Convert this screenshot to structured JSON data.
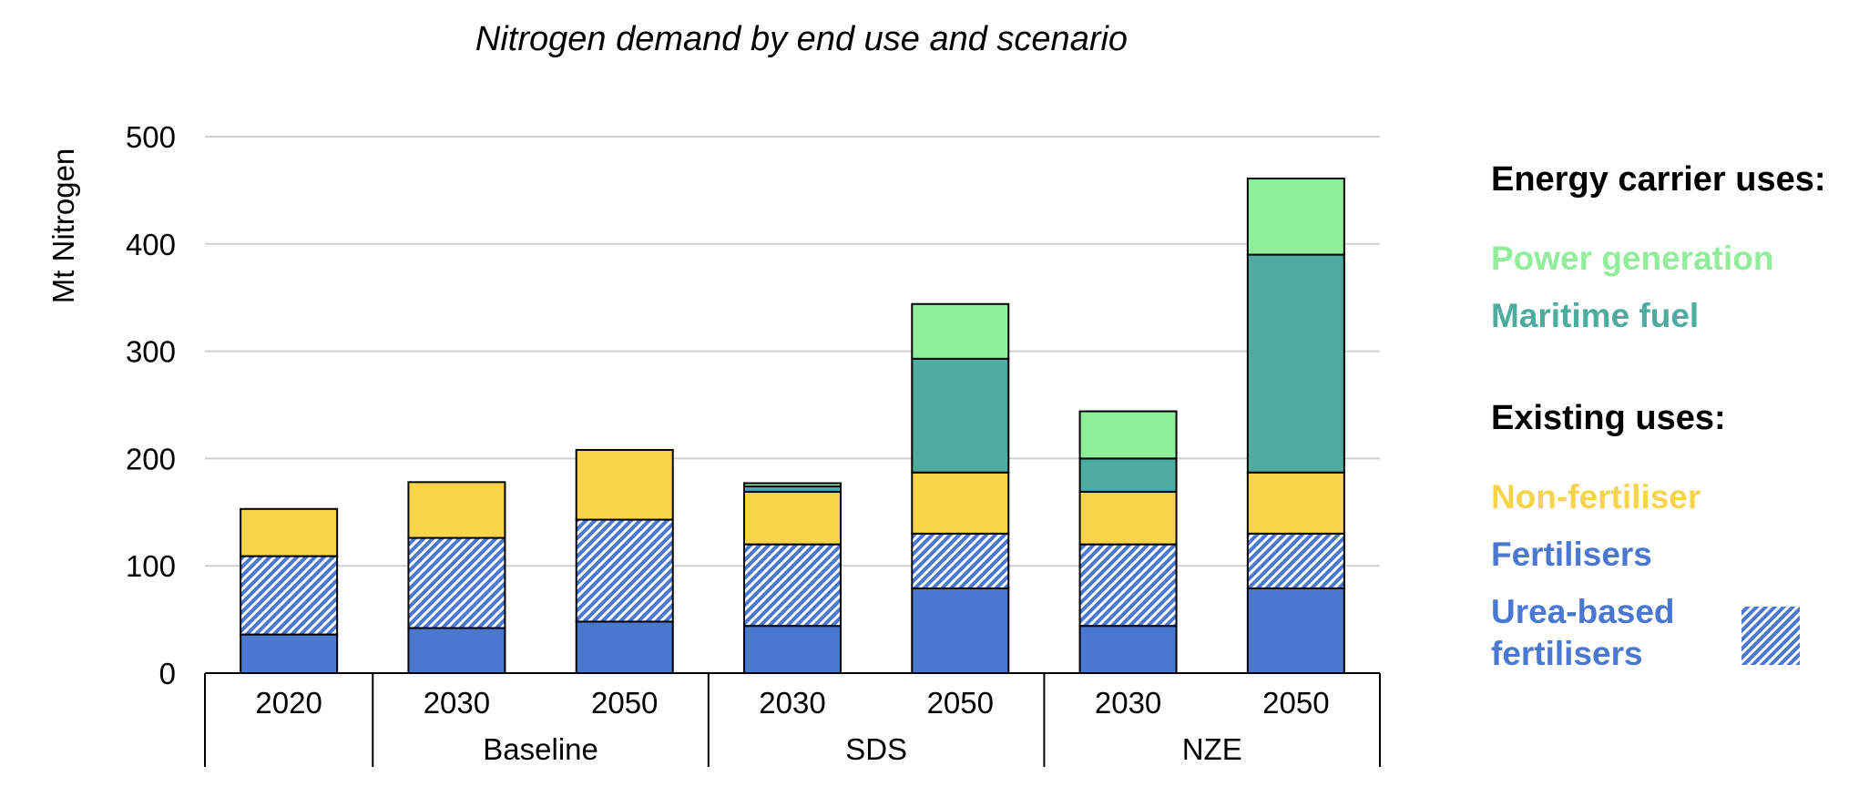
{
  "chart_data": {
    "type": "bar",
    "stacked": true,
    "title": "Nitrogen demand by end use and scenario",
    "xlabel": "",
    "ylabel": "Mt Nitrogen",
    "ylim": [
      0,
      500
    ],
    "yticks": [
      0,
      100,
      200,
      300,
      400,
      500
    ],
    "grid": true,
    "legend_position": "right",
    "categories": [
      "2020",
      "2030",
      "2050",
      "2030",
      "2050",
      "2030",
      "2050"
    ],
    "groups": [
      {
        "label": "",
        "categories": [
          "2020"
        ]
      },
      {
        "label": "Baseline",
        "categories": [
          "2030",
          "2050"
        ]
      },
      {
        "label": "SDS",
        "categories": [
          "2030",
          "2050"
        ]
      },
      {
        "label": "NZE",
        "categories": [
          "2030",
          "2050"
        ]
      }
    ],
    "series": [
      {
        "name": "Fertilisers",
        "color": "#4a78d0",
        "values": [
          36,
          42,
          48,
          44,
          79,
          44,
          79
        ]
      },
      {
        "name": "Urea-based fertilisers",
        "color": "#4a78d0",
        "pattern": "hatch",
        "values": [
          73,
          84,
          95,
          76,
          51,
          76,
          51
        ]
      },
      {
        "name": "Non-fertiliser",
        "color": "#f8d44d",
        "values": [
          44,
          52,
          65,
          49,
          57,
          49,
          57
        ]
      },
      {
        "name": "Maritime fuel",
        "color": "#4dab9f",
        "values": [
          0,
          0,
          0,
          5,
          106,
          31,
          203
        ]
      },
      {
        "name": "Power generation",
        "color": "#90ee9a",
        "values": [
          0,
          0,
          0,
          3,
          51,
          44,
          71
        ]
      }
    ]
  },
  "legend": {
    "energy_heading": "Energy carrier uses:",
    "power_generation": "Power generation",
    "maritime_fuel": "Maritime fuel",
    "existing_heading": "Existing uses:",
    "non_fertiliser": "Non-fertiliser",
    "fertilisers": "Fertilisers",
    "urea_line1": "Urea-based",
    "urea_line2": "fertilisers",
    "colors": {
      "power_generation": "#90ee9a",
      "maritime_fuel": "#4dab9f",
      "non_fertiliser": "#f8d44d",
      "fertilisers": "#4a78d0"
    }
  }
}
